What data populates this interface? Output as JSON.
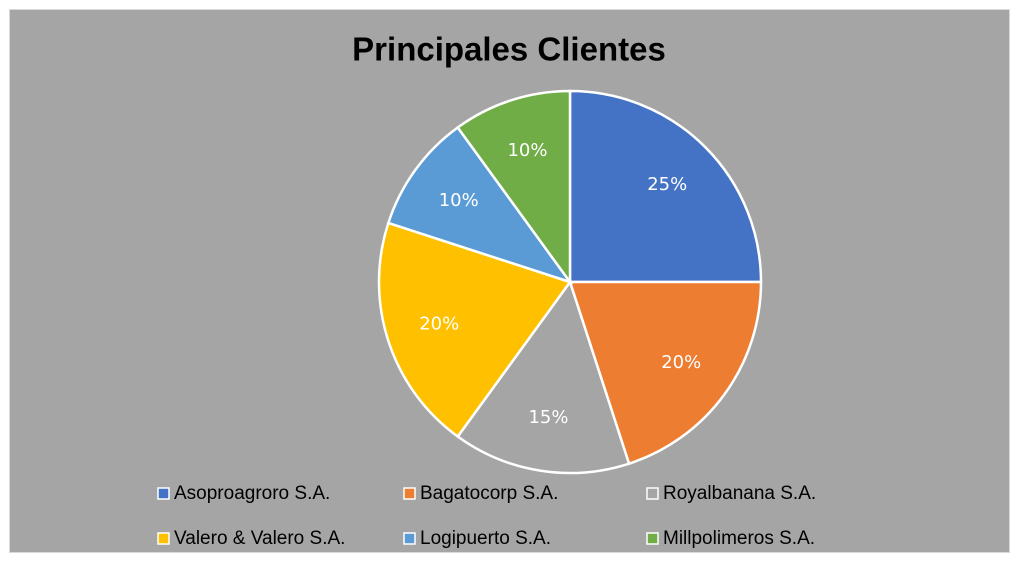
{
  "chart_data": {
    "type": "pie",
    "title": "Principales Clientes",
    "categories": [
      "Asoproagroro S.A.",
      "Bagatocorp S.A.",
      "Royalbanana S.A.",
      "Valero & Valero S.A.",
      "Logipuerto S.A.",
      "Millpolimeros S.A."
    ],
    "values": [
      25,
      20,
      15,
      20,
      10,
      10
    ],
    "value_labels": [
      "25%",
      "20%",
      "15%",
      "20%",
      "10%",
      "10%"
    ],
    "colors": [
      "#4472c4",
      "#ed7d31",
      "#a5a5a5",
      "#ffc000",
      "#5b9bd5",
      "#70ad47"
    ],
    "legend": "bottom"
  }
}
